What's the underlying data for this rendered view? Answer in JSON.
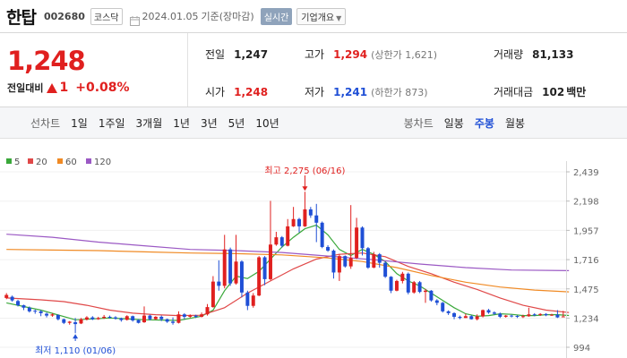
{
  "header": {
    "company_name": "한탑",
    "ticker": "002680",
    "market": "코스닥",
    "date": "2024.01.05",
    "date_basis": "기준(장마감)",
    "realtime_label": "실시간",
    "overview_label": "기업개요"
  },
  "summary": {
    "price": "1,248",
    "change_label": "전일대비",
    "change_amount": "1",
    "change_rate": "+0.08%",
    "prev_close_label": "전일",
    "prev_close": "1,247",
    "high_label": "고가",
    "high": "1,294",
    "upper_limit": "(상한가 1,621)",
    "volume_label": "거래량",
    "volume": "81,133",
    "open_label": "시가",
    "open": "1,248",
    "low_label": "저가",
    "low": "1,241",
    "lower_limit": "(하한가 873)",
    "value_label": "거래대금",
    "value": "102",
    "value_unit": "백만"
  },
  "periods": {
    "line_label": "선차트",
    "line_items": [
      "1일",
      "1주일",
      "3개월",
      "1년",
      "3년",
      "5년",
      "10년"
    ],
    "candle_label": "봉차트",
    "candle_items": [
      "일봉",
      "주봉",
      "월봉"
    ],
    "active_candle": 1
  },
  "colors": {
    "up": "#e0201f",
    "down": "#1f4fd6",
    "ma5": "#3aa83a",
    "ma20": "#e04848",
    "ma60": "#f08a24",
    "ma120": "#9b59c4"
  },
  "chart_data": {
    "type": "candlestick",
    "y_ticks": [
      "2,439",
      "2,198",
      "1,957",
      "1,716",
      "1,475",
      "1,234",
      "994"
    ],
    "ylim": [
      994,
      2439
    ],
    "legend": [
      {
        "name": "5",
        "color": "#3aa83a"
      },
      {
        "name": "20",
        "color": "#e04848"
      },
      {
        "name": "60",
        "color": "#f08a24"
      },
      {
        "name": "120",
        "color": "#9b59c4"
      }
    ],
    "annotations": {
      "high": {
        "label": "최고 2,275 (06/16)",
        "value": 2275,
        "index": 52
      },
      "low": {
        "label": "최저 1,110 (01/06)",
        "value": 1110,
        "index": 12
      }
    },
    "candles": [
      [
        1400,
        1425,
        1440,
        1390
      ],
      [
        1410,
        1380,
        1420,
        1370
      ],
      [
        1375,
        1340,
        1385,
        1330
      ],
      [
        1340,
        1320,
        1345,
        1300
      ],
      [
        1320,
        1290,
        1330,
        1280
      ],
      [
        1295,
        1290,
        1305,
        1270
      ],
      [
        1290,
        1275,
        1300,
        1250
      ],
      [
        1270,
        1255,
        1280,
        1240
      ],
      [
        1255,
        1265,
        1275,
        1245
      ],
      [
        1260,
        1225,
        1265,
        1215
      ],
      [
        1225,
        1195,
        1230,
        1185
      ],
      [
        1195,
        1205,
        1210,
        1180
      ],
      [
        1200,
        1185,
        1235,
        1110
      ],
      [
        1190,
        1225,
        1235,
        1185
      ],
      [
        1222,
        1240,
        1250,
        1215
      ],
      [
        1240,
        1225,
        1250,
        1218
      ],
      [
        1225,
        1235,
        1245,
        1220
      ],
      [
        1235,
        1245,
        1260,
        1228
      ],
      [
        1245,
        1240,
        1255,
        1230
      ],
      [
        1240,
        1230,
        1250,
        1222
      ],
      [
        1232,
        1218,
        1238,
        1205
      ],
      [
        1220,
        1250,
        1258,
        1214
      ],
      [
        1250,
        1215,
        1255,
        1205
      ],
      [
        1218,
        1195,
        1225,
        1190
      ],
      [
        1200,
        1255,
        1330,
        1195
      ],
      [
        1255,
        1225,
        1262,
        1215
      ],
      [
        1225,
        1245,
        1250,
        1220
      ],
      [
        1245,
        1225,
        1255,
        1210
      ],
      [
        1225,
        1205,
        1230,
        1195
      ],
      [
        1205,
        1195,
        1240,
        1180
      ],
      [
        1195,
        1265,
        1290,
        1190
      ],
      [
        1265,
        1245,
        1275,
        1225
      ],
      [
        1245,
        1255,
        1265,
        1235
      ],
      [
        1255,
        1245,
        1262,
        1235
      ],
      [
        1245,
        1265,
        1280,
        1240
      ],
      [
        1265,
        1325,
        1350,
        1255
      ],
      [
        1325,
        1535,
        1580,
        1320
      ],
      [
        1535,
        1500,
        1710,
        1460
      ],
      [
        1500,
        1800,
        1920,
        1480
      ],
      [
        1800,
        1520,
        1815,
        1500
      ],
      [
        1520,
        1700,
        1920,
        1510
      ],
      [
        1700,
        1445,
        1710,
        1405
      ],
      [
        1445,
        1335,
        1460,
        1300
      ],
      [
        1335,
        1420,
        1440,
        1320
      ],
      [
        1420,
        1735,
        1745,
        1415
      ],
      [
        1735,
        1555,
        1745,
        1505
      ],
      [
        1555,
        1840,
        2200,
        1545
      ],
      [
        1840,
        1900,
        1945,
        1830
      ],
      [
        1900,
        1830,
        1910,
        1815
      ],
      [
        1830,
        1990,
        2050,
        1825
      ],
      [
        1990,
        2050,
        2150,
        1985
      ],
      [
        2050,
        1990,
        2060,
        1940
      ],
      [
        1990,
        2130,
        2275,
        1985
      ],
      [
        2130,
        2080,
        2150,
        2060
      ],
      [
        2080,
        2020,
        2175,
        1860
      ],
      [
        2020,
        1820,
        2030,
        1810
      ],
      [
        1820,
        1790,
        1835,
        1780
      ],
      [
        1790,
        1610,
        1800,
        1560
      ],
      [
        1610,
        1745,
        1760,
        1540
      ],
      [
        1745,
        1660,
        1750,
        1650
      ],
      [
        1660,
        1730,
        2165,
        1640
      ],
      [
        1730,
        1980,
        2060,
        1720
      ],
      [
        1980,
        1810,
        1990,
        1750
      ],
      [
        1810,
        1650,
        1820,
        1640
      ],
      [
        1650,
        1760,
        1780,
        1645
      ],
      [
        1760,
        1690,
        1770,
        1650
      ],
      [
        1690,
        1575,
        1700,
        1565
      ],
      [
        1575,
        1460,
        1580,
        1440
      ],
      [
        1460,
        1540,
        1550,
        1455
      ],
      [
        1540,
        1600,
        1615,
        1520
      ],
      [
        1600,
        1445,
        1610,
        1430
      ],
      [
        1445,
        1530,
        1540,
        1435
      ],
      [
        1530,
        1450,
        1540,
        1440
      ],
      [
        1450,
        1460,
        1475,
        1360
      ],
      [
        1460,
        1380,
        1465,
        1370
      ],
      [
        1380,
        1360,
        1390,
        1340
      ],
      [
        1360,
        1290,
        1368,
        1280
      ],
      [
        1290,
        1275,
        1298,
        1260
      ],
      [
        1275,
        1245,
        1282,
        1225
      ],
      [
        1245,
        1235,
        1255,
        1225
      ],
      [
        1235,
        1250,
        1270,
        1235
      ],
      [
        1250,
        1225,
        1258,
        1222
      ],
      [
        1225,
        1248,
        1265,
        1215
      ],
      [
        1248,
        1300,
        1305,
        1240
      ],
      [
        1300,
        1280,
        1310,
        1270
      ],
      [
        1280,
        1270,
        1290,
        1262
      ],
      [
        1270,
        1245,
        1280,
        1235
      ],
      [
        1245,
        1255,
        1260,
        1238
      ],
      [
        1255,
        1252,
        1262,
        1240
      ],
      [
        1252,
        1245,
        1258,
        1235
      ],
      [
        1245,
        1250,
        1262,
        1235
      ],
      [
        1250,
        1265,
        1320,
        1245
      ],
      [
        1265,
        1260,
        1275,
        1250
      ],
      [
        1260,
        1268,
        1275,
        1252
      ],
      [
        1268,
        1258,
        1275,
        1250
      ],
      [
        1258,
        1262,
        1270,
        1252
      ],
      [
        1262,
        1240,
        1300,
        1235
      ],
      [
        1247,
        1248,
        1294,
        1241
      ]
    ],
    "ma_series": {
      "ma5": [
        [
          0,
          1360
        ],
        [
          6,
          1300
        ],
        [
          12,
          1220
        ],
        [
          18,
          1235
        ],
        [
          24,
          1220
        ],
        [
          30,
          1215
        ],
        [
          34,
          1250
        ],
        [
          36,
          1300
        ],
        [
          38,
          1460
        ],
        [
          40,
          1580
        ],
        [
          42,
          1560
        ],
        [
          44,
          1620
        ],
        [
          46,
          1720
        ],
        [
          48,
          1820
        ],
        [
          50,
          1900
        ],
        [
          52,
          1970
        ],
        [
          54,
          2000
        ],
        [
          56,
          1920
        ],
        [
          58,
          1800
        ],
        [
          60,
          1750
        ],
        [
          62,
          1800
        ],
        [
          64,
          1760
        ],
        [
          66,
          1700
        ],
        [
          68,
          1600
        ],
        [
          70,
          1540
        ],
        [
          72,
          1500
        ],
        [
          74,
          1440
        ],
        [
          76,
          1380
        ],
        [
          78,
          1320
        ],
        [
          80,
          1270
        ],
        [
          82,
          1250
        ],
        [
          84,
          1255
        ],
        [
          86,
          1270
        ],
        [
          88,
          1265
        ],
        [
          90,
          1255
        ],
        [
          92,
          1255
        ],
        [
          94,
          1262
        ],
        [
          96,
          1262
        ],
        [
          98,
          1256
        ]
      ],
      "ma20": [
        [
          0,
          1400
        ],
        [
          6,
          1385
        ],
        [
          10,
          1370
        ],
        [
          14,
          1340
        ],
        [
          18,
          1300
        ],
        [
          22,
          1275
        ],
        [
          26,
          1262
        ],
        [
          30,
          1255
        ],
        [
          34,
          1258
        ],
        [
          38,
          1320
        ],
        [
          42,
          1440
        ],
        [
          46,
          1540
        ],
        [
          50,
          1640
        ],
        [
          54,
          1720
        ],
        [
          58,
          1760
        ],
        [
          62,
          1770
        ],
        [
          66,
          1740
        ],
        [
          70,
          1660
        ],
        [
          74,
          1600
        ],
        [
          78,
          1530
        ],
        [
          82,
          1470
        ],
        [
          86,
          1400
        ],
        [
          90,
          1340
        ],
        [
          94,
          1300
        ],
        [
          98,
          1280
        ]
      ],
      "ma60": [
        [
          0,
          1800
        ],
        [
          8,
          1795
        ],
        [
          16,
          1790
        ],
        [
          24,
          1780
        ],
        [
          32,
          1770
        ],
        [
          40,
          1765
        ],
        [
          48,
          1755
        ],
        [
          56,
          1730
        ],
        [
          62,
          1700
        ],
        [
          68,
          1650
        ],
        [
          74,
          1585
        ],
        [
          80,
          1530
        ],
        [
          86,
          1490
        ],
        [
          92,
          1465
        ],
        [
          98,
          1450
        ]
      ],
      "ma120": [
        [
          0,
          1925
        ],
        [
          8,
          1900
        ],
        [
          16,
          1860
        ],
        [
          24,
          1830
        ],
        [
          32,
          1800
        ],
        [
          40,
          1790
        ],
        [
          48,
          1775
        ],
        [
          56,
          1745
        ],
        [
          64,
          1715
        ],
        [
          72,
          1680
        ],
        [
          80,
          1650
        ],
        [
          88,
          1630
        ],
        [
          98,
          1625
        ]
      ]
    }
  }
}
